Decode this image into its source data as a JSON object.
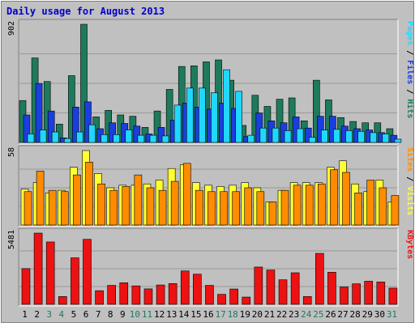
{
  "chart_data": {
    "type": "bar",
    "title": "Daily usage for August 2013",
    "categories": [
      "1",
      "2",
      "3",
      "4",
      "5",
      "6",
      "7",
      "8",
      "9",
      "10",
      "11",
      "12",
      "13",
      "14",
      "15",
      "16",
      "17",
      "18",
      "19",
      "20",
      "21",
      "22",
      "23",
      "24",
      "25",
      "26",
      "27",
      "28",
      "29",
      "30",
      "31"
    ],
    "weekend_days": [
      "3",
      "4",
      "10",
      "11",
      "17",
      "18",
      "24",
      "25",
      "31"
    ],
    "grid": true,
    "colors": {
      "background": "#c0c0c0",
      "frame": "#ffffff",
      "title": "#0000cc",
      "hits": "#1e7a5c",
      "files": "#1a3fe0",
      "pages": "#20d8ff",
      "visits": "#ffff33",
      "sites": "#ff8c00",
      "kbytes": "#ee1111",
      "weekday_label": "#000000",
      "weekend_label": "#1e7a5c"
    },
    "panels": [
      {
        "name": "hits_files_pages",
        "max_label": "902",
        "ymax": 902,
        "right_label": [
          {
            "text": "Pages",
            "color": "#20d8ff"
          },
          {
            "text": " / ",
            "color": "#000000"
          },
          {
            "text": "Files",
            "color": "#1a3fe0"
          },
          {
            "text": " / ",
            "color": "#000000"
          },
          {
            "text": "Hits",
            "color": "#1e7a5c"
          }
        ],
        "series": [
          {
            "name": "Hits",
            "color": "#1e7a5c",
            "values": [
              320,
              645,
              465,
              140,
              510,
              902,
              195,
              245,
              210,
              200,
              115,
              240,
              405,
              580,
              585,
              615,
              630,
              475,
              130,
              360,
              275,
              330,
              340,
              165,
              475,
              325,
              190,
              160,
              150,
              150,
              105
            ]
          },
          {
            "name": "Files",
            "color": "#1a3fe0",
            "values": [
              210,
              450,
              240,
              35,
              270,
              310,
              105,
              150,
              145,
              125,
              65,
              115,
              170,
              300,
              270,
              255,
              300,
              260,
              45,
              225,
              165,
              150,
              195,
              110,
              200,
              200,
              125,
              105,
              95,
              75,
              55
            ]
          },
          {
            "name": "Pages",
            "color": "#20d8ff",
            "values": [
              65,
              95,
              80,
              30,
              80,
              135,
              60,
              60,
              95,
              55,
              55,
              50,
              285,
              415,
              415,
              380,
              555,
              390,
              55,
              110,
              110,
              90,
              105,
              40,
              95,
              100,
              90,
              85,
              75,
              65,
              25
            ]
          }
        ]
      },
      {
        "name": "visits_sites",
        "max_label": "58",
        "ymax": 58,
        "right_label": [
          {
            "text": "Sites",
            "color": "#ff8c00"
          },
          {
            "text": " / ",
            "color": "#000000"
          },
          {
            "text": "Visits",
            "color": "#ffff33"
          }
        ],
        "series": [
          {
            "name": "Visits",
            "color": "#ffff33",
            "values": [
              28,
              33,
              25,
              27,
              45,
              58,
              40,
              29,
              31,
              31,
              32,
              35,
              44,
              47,
              33,
              31,
              30,
              31,
              33,
              29,
              18,
              27,
              33,
              33,
              33,
              45,
              50,
              32,
              26,
              35,
              18
            ]
          },
          {
            "name": "Sites",
            "color": "#ff8c00",
            "values": [
              26,
              42,
              27,
              26,
              39,
              49,
              32,
              27,
              30,
              39,
              29,
              27,
              34,
              48,
              27,
              26,
              26,
              26,
              29,
              26,
              18,
              27,
              31,
              31,
              32,
              43,
              41,
              25,
              35,
              29,
              23
            ]
          }
        ]
      },
      {
        "name": "kbytes",
        "max_label": "5481",
        "ymax": 5481,
        "right_label": [
          {
            "text": "KBytes",
            "color": "#ee1111"
          }
        ],
        "series": [
          {
            "name": "KBytes",
            "color": "#ee1111",
            "values": [
              2750,
              5481,
              4800,
              600,
              3580,
              5000,
              1050,
              1460,
              1660,
              1420,
              1190,
              1490,
              1600,
              2570,
              2320,
              1460,
              770,
              1180,
              560,
              2870,
              2640,
              1890,
              2430,
              600,
              3920,
              2470,
              1340,
              1580,
              1780,
              1720,
              1250
            ]
          }
        ]
      }
    ]
  }
}
